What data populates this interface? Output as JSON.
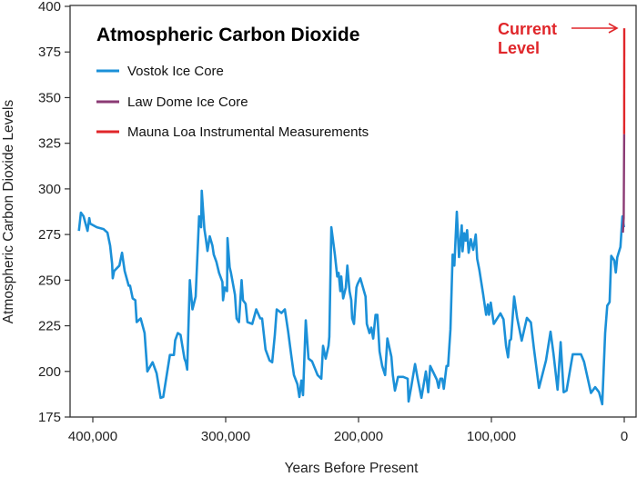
{
  "chart_data": {
    "type": "line",
    "title": "Atmospheric Carbon Dioxide",
    "xlabel": "Years Before Present",
    "ylabel": "Atmospheric Carbon Dioxide Levels",
    "xlim": [
      421900,
      -6200
    ],
    "ylim": [
      175,
      400
    ],
    "x_reversed": true,
    "grid": false,
    "legend_placement": "top-left",
    "xticks": [
      400000,
      300000,
      200000,
      100000,
      0
    ],
    "xtick_labels": [
      "400,000",
      "300,000",
      "200,000",
      "100,000",
      "0"
    ],
    "yticks": [
      175,
      200,
      225,
      250,
      275,
      300,
      325,
      350,
      375,
      400
    ],
    "ytick_labels": [
      "175",
      "200",
      "225",
      "250",
      "275",
      "300",
      "325",
      "350",
      "375",
      "400"
    ],
    "annotation": {
      "lines": [
        "Current",
        "Level"
      ],
      "color": "#e0262a"
    },
    "series": [
      {
        "name": "Vostok Ice Core",
        "color": "#1b90d8",
        "points": [
          [
            410500,
            277
          ],
          [
            409000,
            287
          ],
          [
            407000,
            285
          ],
          [
            404000,
            277
          ],
          [
            402700,
            284
          ],
          [
            402000,
            281
          ],
          [
            397000,
            279
          ],
          [
            392000,
            278
          ],
          [
            389000,
            276
          ],
          [
            387000,
            269
          ],
          [
            385500,
            259
          ],
          [
            385000,
            251
          ],
          [
            384000,
            255
          ],
          [
            380000,
            258
          ],
          [
            378000,
            265
          ],
          [
            376000,
            255
          ],
          [
            373000,
            247
          ],
          [
            372000,
            247
          ],
          [
            370000,
            240
          ],
          [
            368000,
            239
          ],
          [
            367000,
            227
          ],
          [
            364000,
            229
          ],
          [
            361000,
            221
          ],
          [
            359000,
            200
          ],
          [
            355000,
            205
          ],
          [
            352000,
            199
          ],
          [
            349000,
            185.5
          ],
          [
            347000,
            186
          ],
          [
            342000,
            209
          ],
          [
            339000,
            209
          ],
          [
            338000,
            217
          ],
          [
            336000,
            221
          ],
          [
            334000,
            220
          ],
          [
            331000,
            207
          ],
          [
            330000,
            205
          ],
          [
            329000,
            201
          ],
          [
            327000,
            250
          ],
          [
            325000,
            234
          ],
          [
            322600,
            241
          ],
          [
            320000,
            285
          ],
          [
            318500,
            279
          ],
          [
            318000,
            299
          ],
          [
            316000,
            278
          ],
          [
            315000,
            273
          ],
          [
            313700,
            266
          ],
          [
            312000,
            274
          ],
          [
            310000,
            269
          ],
          [
            309000,
            264
          ],
          [
            307000,
            260
          ],
          [
            305000,
            254
          ],
          [
            302500,
            249
          ],
          [
            302000,
            239
          ],
          [
            300700,
            246
          ],
          [
            299000,
            244
          ],
          [
            298600,
            273
          ],
          [
            297000,
            257
          ],
          [
            296000,
            254
          ],
          [
            293000,
            242
          ],
          [
            291800,
            229
          ],
          [
            290000,
            227
          ],
          [
            288000,
            250
          ],
          [
            287000,
            239
          ],
          [
            285000,
            237
          ],
          [
            283600,
            227
          ],
          [
            280000,
            226
          ],
          [
            277000,
            234
          ],
          [
            274000,
            229
          ],
          [
            272600,
            229
          ],
          [
            270000,
            212
          ],
          [
            267000,
            206
          ],
          [
            265000,
            205
          ],
          [
            263000,
            220
          ],
          [
            261600,
            234
          ],
          [
            258000,
            232
          ],
          [
            255500,
            234
          ],
          [
            253000,
            222
          ],
          [
            250700,
            209
          ],
          [
            248600,
            198
          ],
          [
            246000,
            193
          ],
          [
            244500,
            186
          ],
          [
            243000,
            195
          ],
          [
            241800,
            187
          ],
          [
            239700,
            228
          ],
          [
            237700,
            207
          ],
          [
            235000,
            205.5
          ],
          [
            230800,
            198
          ],
          [
            228000,
            196
          ],
          [
            226700,
            214
          ],
          [
            224700,
            207
          ],
          [
            222600,
            214
          ],
          [
            222000,
            219
          ],
          [
            220500,
            279
          ],
          [
            217800,
            264
          ],
          [
            216000,
            252
          ],
          [
            215000,
            254
          ],
          [
            213700,
            244
          ],
          [
            213000,
            252
          ],
          [
            211600,
            240
          ],
          [
            209600,
            246
          ],
          [
            208400,
            258
          ],
          [
            206800,
            244
          ],
          [
            205500,
            239
          ],
          [
            204800,
            229
          ],
          [
            203400,
            226
          ],
          [
            201600,
            246
          ],
          [
            200700,
            248
          ],
          [
            198600,
            251
          ],
          [
            194700,
            241
          ],
          [
            193800,
            226
          ],
          [
            191800,
            221
          ],
          [
            190400,
            224
          ],
          [
            189000,
            218
          ],
          [
            187200,
            231
          ],
          [
            185800,
            231
          ],
          [
            184200,
            211
          ],
          [
            182200,
            203
          ],
          [
            180000,
            198
          ],
          [
            178300,
            218
          ],
          [
            175300,
            208
          ],
          [
            174200,
            198
          ],
          [
            172600,
            189.5
          ],
          [
            170300,
            197
          ],
          [
            166400,
            197
          ],
          [
            163000,
            196
          ],
          [
            162300,
            183.5
          ],
          [
            160500,
            191
          ],
          [
            157500,
            204
          ],
          [
            155500,
            196
          ],
          [
            152700,
            185.5
          ],
          [
            149300,
            200
          ],
          [
            147500,
            188.6
          ],
          [
            146000,
            203
          ],
          [
            141000,
            195.4
          ],
          [
            139700,
            191
          ],
          [
            138400,
            196
          ],
          [
            137000,
            196
          ],
          [
            135800,
            190.5
          ],
          [
            133800,
            203
          ],
          [
            132600,
            203
          ],
          [
            130800,
            223
          ],
          [
            129200,
            264
          ],
          [
            127900,
            258
          ],
          [
            126000,
            287.5
          ],
          [
            124400,
            262.6
          ],
          [
            122300,
            280
          ],
          [
            121700,
            265.8
          ],
          [
            120500,
            275.7
          ],
          [
            119400,
            271.6
          ],
          [
            118300,
            277.4
          ],
          [
            117100,
            265
          ],
          [
            115500,
            272.4
          ],
          [
            113700,
            266.6
          ],
          [
            111800,
            275
          ],
          [
            110700,
            261.6
          ],
          [
            109100,
            255.8
          ],
          [
            106300,
            242.7
          ],
          [
            104000,
            231
          ],
          [
            102700,
            236.7
          ],
          [
            101800,
            231
          ],
          [
            100500,
            237.7
          ],
          [
            98200,
            226
          ],
          [
            93200,
            231.8
          ],
          [
            90900,
            228.5
          ],
          [
            89000,
            214
          ],
          [
            87500,
            207.7
          ],
          [
            86300,
            216.8
          ],
          [
            85200,
            217.7
          ],
          [
            82900,
            241
          ],
          [
            80600,
            229.3
          ],
          [
            77200,
            216.8
          ],
          [
            73300,
            229.3
          ],
          [
            70300,
            226.8
          ],
          [
            68000,
            212.7
          ],
          [
            64200,
            191
          ],
          [
            58900,
            206
          ],
          [
            55500,
            221.8
          ],
          [
            53200,
            209.4
          ],
          [
            50200,
            190
          ],
          [
            47900,
            216
          ],
          [
            45600,
            188.6
          ],
          [
            43400,
            189.5
          ],
          [
            38800,
            209.4
          ],
          [
            32600,
            209.4
          ],
          [
            30300,
            205.3
          ],
          [
            25100,
            188.2
          ],
          [
            21900,
            191.4
          ],
          [
            19000,
            188.6
          ],
          [
            16600,
            182
          ],
          [
            14400,
            221
          ],
          [
            12800,
            236
          ],
          [
            11000,
            238
          ],
          [
            9800,
            263.3
          ],
          [
            7500,
            260.8
          ],
          [
            6400,
            254.2
          ],
          [
            5300,
            262.5
          ],
          [
            2900,
            268.2
          ],
          [
            1400,
            284.9
          ],
          [
            200,
            279
          ]
        ]
      },
      {
        "name": "Law Dome Ice Core",
        "color": "#8b3a74",
        "points": [
          [
            1000,
            276
          ],
          [
            400,
            284
          ],
          [
            60,
            330
          ]
        ]
      },
      {
        "name": "Mauna Loa Instrumental Measurements",
        "color": "#e0262a",
        "points": [
          [
            60,
            330
          ],
          [
            0,
            388
          ]
        ]
      }
    ]
  }
}
